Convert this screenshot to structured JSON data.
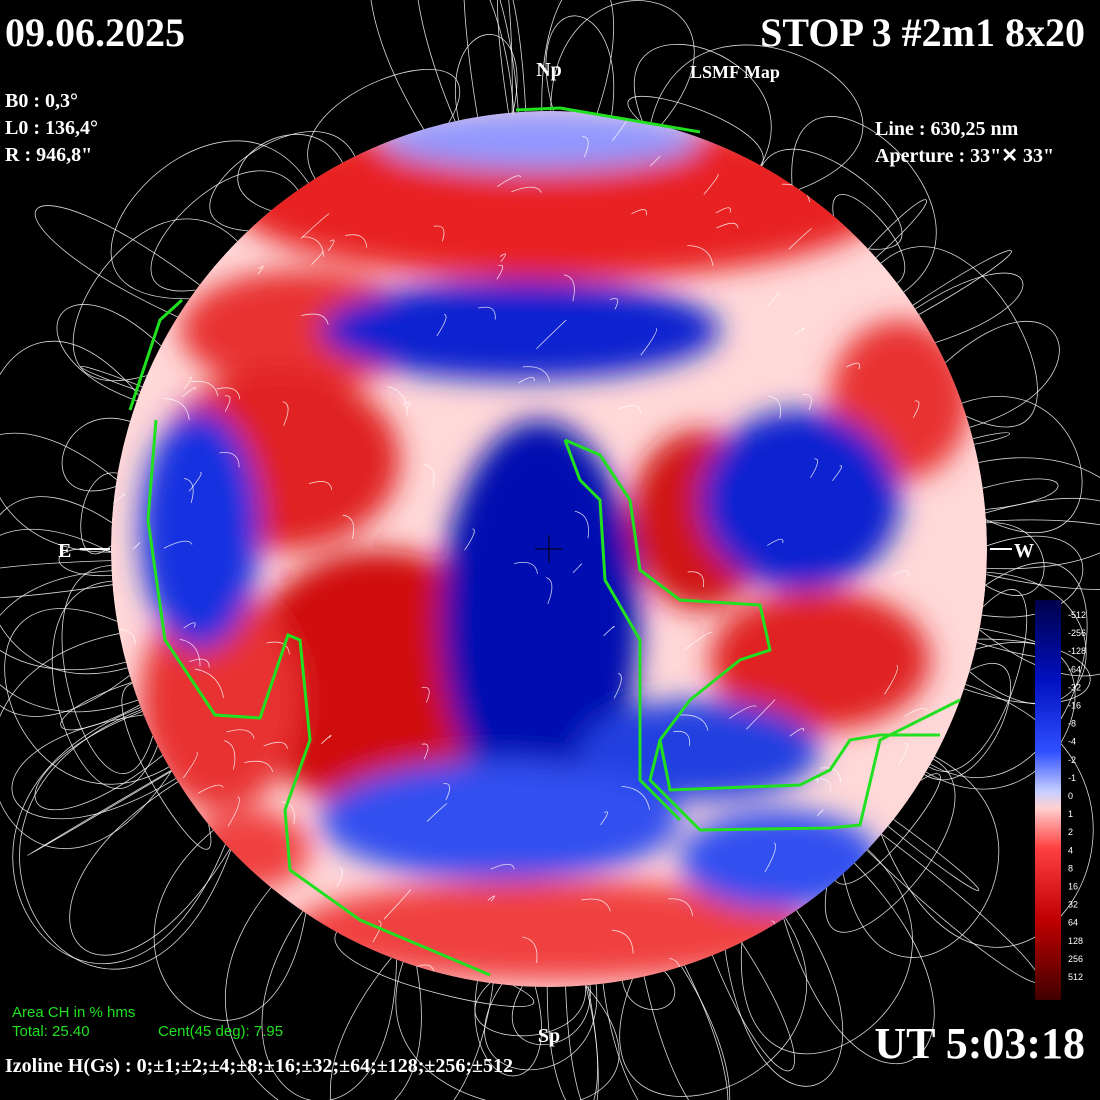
{
  "header": {
    "date": "09.06.2025",
    "title": "STOP 3 #2m1 8x20",
    "subtitle": "LSMF  Map"
  },
  "parameters": {
    "b0": "B0 : 0,3°",
    "l0": "L0 : 136,4°",
    "r": "R  : 946,8\""
  },
  "instrument": {
    "line": "Line :  630,25 nm",
    "aperture": "Aperture : 33\"✕ 33\""
  },
  "directions": {
    "north": "Np",
    "south": "Sp",
    "east": "E",
    "west": "W"
  },
  "coronal_hole": {
    "heading": "Area CH in % hms",
    "total": "Total: 25.40",
    "central": "Cent(45 deg): 7.95"
  },
  "time": "UT 5:03:18",
  "isolines": "Izoline H(Gs) : 0;±1;±2;±4;±8;±16;±32;±64;±128;±256;±512",
  "colorbar": {
    "labels": [
      "-512",
      "-256",
      "-128",
      "-64",
      "-32",
      "-16",
      "-8",
      "-4",
      "-2",
      "-1",
      "0",
      "1",
      "2",
      "4",
      "8",
      "16",
      "32",
      "64",
      "128",
      "256",
      "512"
    ]
  }
}
